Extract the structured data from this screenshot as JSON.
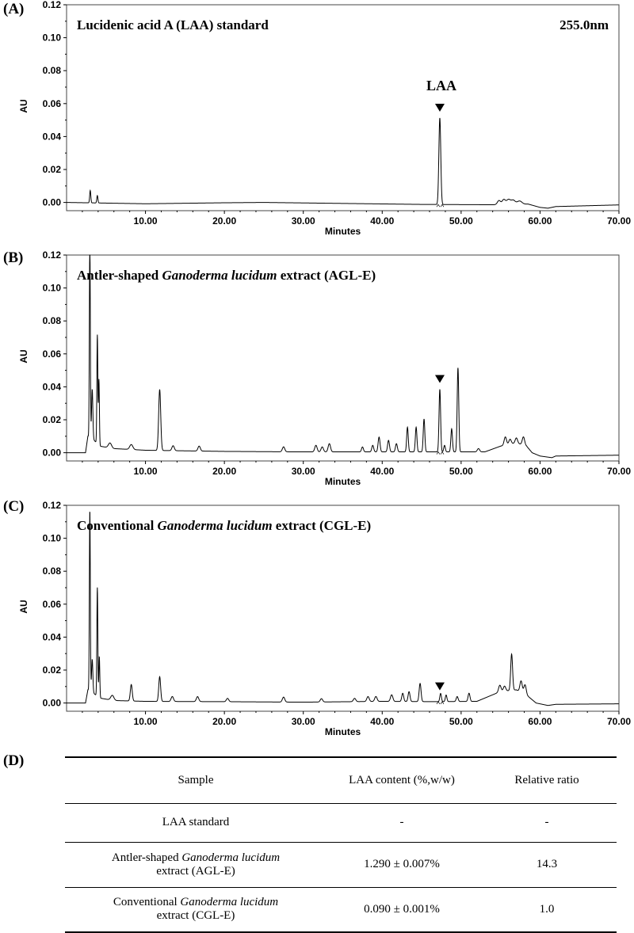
{
  "panels": [
    {
      "letter": "(A)",
      "title_parts": [
        "Lucidenic acid A (LAA) standard",
        "",
        ""
      ],
      "wavelength": "255.0nm",
      "peak_label": "LAA"
    },
    {
      "letter": "(B)",
      "title_parts": [
        "Antler-shaped ",
        "Ganoderma lucidum",
        " extract (AGL-E)"
      ],
      "wavelength": "",
      "peak_label": ""
    },
    {
      "letter": "(C)",
      "title_parts": [
        "Conventional ",
        "Ganoderma lucidum",
        " extract (CGL-E)"
      ],
      "wavelength": "",
      "peak_label": ""
    }
  ],
  "chart_data": [
    {
      "type": "line",
      "title": "Lucidenic acid A (LAA) standard",
      "xlabel": "Minutes",
      "ylabel": "AU",
      "xlim": [
        0,
        70
      ],
      "ylim": [
        -0.005,
        0.12
      ],
      "x_ticks": [
        "10.00",
        "20.00",
        "30.00",
        "40.00",
        "50.00",
        "60.00",
        "70.00"
      ],
      "y_ticks": [
        "0.00",
        "0.02",
        "0.04",
        "0.06",
        "0.08",
        "0.10",
        "0.12"
      ],
      "baseline": [
        [
          0,
          0.0
        ],
        [
          10,
          -0.0008
        ],
        [
          20,
          -0.0002
        ],
        [
          25,
          0.0
        ],
        [
          35,
          -0.0006
        ],
        [
          45,
          -0.0012
        ],
        [
          54,
          -0.0014
        ],
        [
          58.5,
          -0.001
        ],
        [
          60,
          -0.003
        ],
        [
          61,
          -0.0035
        ],
        [
          62,
          -0.0025
        ],
        [
          70,
          -0.0015
        ]
      ],
      "peaks": [
        [
          3.0,
          0.0075,
          0.07
        ],
        [
          3.9,
          0.0045,
          0.07
        ],
        [
          47.3,
          0.0525,
          0.12
        ],
        [
          54.8,
          0.0025,
          0.2
        ],
        [
          55.4,
          0.003,
          0.2
        ],
        [
          56.0,
          0.003,
          0.25
        ],
        [
          56.6,
          0.0025,
          0.25
        ],
        [
          57.4,
          0.002,
          0.3
        ]
      ],
      "markers": [
        47.3
      ]
    },
    {
      "type": "line",
      "title": "Antler-shaped Ganoderma lucidum extract (AGL-E)",
      "xlabel": "Minutes",
      "ylabel": "AU",
      "xlim": [
        0,
        70
      ],
      "ylim": [
        -0.005,
        0.12
      ],
      "x_ticks": [
        "10.00",
        "20.00",
        "30.00",
        "40.00",
        "50.00",
        "60.00",
        "70.00"
      ],
      "y_ticks": [
        "0.00",
        "0.02",
        "0.04",
        "0.06",
        "0.08",
        "0.10",
        "0.12"
      ],
      "baseline": [
        [
          0,
          0.0
        ],
        [
          2.4,
          0.0
        ],
        [
          2.7,
          0.01
        ],
        [
          3.4,
          0.008
        ],
        [
          4.2,
          0.004
        ],
        [
          6,
          0.0025
        ],
        [
          10,
          0.0015
        ],
        [
          20,
          0.0008
        ],
        [
          30,
          0.0005
        ],
        [
          40,
          0.0005
        ],
        [
          50,
          0.0005
        ],
        [
          53,
          0.0005
        ],
        [
          55,
          0.004
        ],
        [
          57,
          0.006
        ],
        [
          58.3,
          0.004
        ],
        [
          59,
          0.0
        ],
        [
          60,
          -0.002
        ],
        [
          61.5,
          -0.003
        ],
        [
          62,
          -0.002
        ],
        [
          70,
          -0.0015
        ]
      ],
      "peaks": [
        [
          2.95,
          0.12,
          0.06
        ],
        [
          3.25,
          0.03,
          0.08
        ],
        [
          3.9,
          0.066,
          0.06
        ],
        [
          4.1,
          0.04,
          0.06
        ],
        [
          5.5,
          0.003,
          0.2
        ],
        [
          8.2,
          0.003,
          0.2
        ],
        [
          11.8,
          0.037,
          0.13
        ],
        [
          13.5,
          0.003,
          0.15
        ],
        [
          16.8,
          0.003,
          0.15
        ],
        [
          27.5,
          0.003,
          0.15
        ],
        [
          31.6,
          0.004,
          0.15
        ],
        [
          32.4,
          0.003,
          0.15
        ],
        [
          33.3,
          0.005,
          0.15
        ],
        [
          37.5,
          0.003,
          0.12
        ],
        [
          38.8,
          0.004,
          0.12
        ],
        [
          39.6,
          0.009,
          0.12
        ],
        [
          40.8,
          0.007,
          0.12
        ],
        [
          41.8,
          0.005,
          0.12
        ],
        [
          43.2,
          0.015,
          0.1
        ],
        [
          44.3,
          0.015,
          0.1
        ],
        [
          45.3,
          0.02,
          0.1
        ],
        [
          47.3,
          0.038,
          0.1
        ],
        [
          47.9,
          0.004,
          0.1
        ],
        [
          48.8,
          0.014,
          0.1
        ],
        [
          49.6,
          0.051,
          0.1
        ],
        [
          52.2,
          0.002,
          0.15
        ],
        [
          55.6,
          0.005,
          0.15
        ],
        [
          56.2,
          0.003,
          0.15
        ],
        [
          57.0,
          0.003,
          0.15
        ],
        [
          57.9,
          0.005,
          0.15
        ]
      ],
      "markers": [
        47.3
      ]
    },
    {
      "type": "line",
      "title": "Conventional Ganoderma lucidum extract (CGL-E)",
      "xlabel": "Minutes",
      "ylabel": "AU",
      "xlim": [
        0,
        70
      ],
      "ylim": [
        -0.005,
        0.12
      ],
      "x_ticks": [
        "10.00",
        "20.00",
        "30.00",
        "40.00",
        "50.00",
        "60.00",
        "70.00"
      ],
      "y_ticks": [
        "0.00",
        "0.02",
        "0.04",
        "0.06",
        "0.08",
        "0.10",
        "0.12"
      ],
      "baseline": [
        [
          0,
          0.0
        ],
        [
          2.4,
          0.0
        ],
        [
          2.7,
          0.008
        ],
        [
          3.4,
          0.006
        ],
        [
          4.2,
          0.003
        ],
        [
          6,
          0.0015
        ],
        [
          10,
          0.001
        ],
        [
          20,
          0.0008
        ],
        [
          30,
          0.0005
        ],
        [
          40,
          0.001
        ],
        [
          47,
          0.0008
        ],
        [
          52,
          0.001
        ],
        [
          53,
          0.003
        ],
        [
          55,
          0.007
        ],
        [
          57,
          0.008
        ],
        [
          58.5,
          0.004
        ],
        [
          59.5,
          0.0
        ],
        [
          61,
          -0.0015
        ],
        [
          62,
          -0.0008
        ],
        [
          70,
          -0.0005
        ]
      ],
      "peaks": [
        [
          2.95,
          0.11,
          0.06
        ],
        [
          3.25,
          0.02,
          0.08
        ],
        [
          3.9,
          0.066,
          0.06
        ],
        [
          4.15,
          0.025,
          0.06
        ],
        [
          5.8,
          0.003,
          0.2
        ],
        [
          8.2,
          0.01,
          0.12
        ],
        [
          11.8,
          0.015,
          0.12
        ],
        [
          13.4,
          0.003,
          0.15
        ],
        [
          16.6,
          0.003,
          0.15
        ],
        [
          20.4,
          0.002,
          0.15
        ],
        [
          27.5,
          0.003,
          0.15
        ],
        [
          32.3,
          0.002,
          0.15
        ],
        [
          36.5,
          0.002,
          0.15
        ],
        [
          38.2,
          0.003,
          0.15
        ],
        [
          39.2,
          0.003,
          0.15
        ],
        [
          41.2,
          0.004,
          0.15
        ],
        [
          42.6,
          0.005,
          0.12
        ],
        [
          43.4,
          0.006,
          0.12
        ],
        [
          44.8,
          0.011,
          0.12
        ],
        [
          47.4,
          0.005,
          0.1
        ],
        [
          48.1,
          0.004,
          0.1
        ],
        [
          49.5,
          0.003,
          0.12
        ],
        [
          51.0,
          0.005,
          0.12
        ],
        [
          54.9,
          0.004,
          0.15
        ],
        [
          55.5,
          0.003,
          0.15
        ],
        [
          56.4,
          0.022,
          0.12
        ],
        [
          57.6,
          0.007,
          0.15
        ],
        [
          58.1,
          0.006,
          0.15
        ]
      ],
      "markers": [
        47.3
      ]
    }
  ],
  "table": {
    "letter": "(D)",
    "headers": [
      "Sample",
      "LAA content (%,w/w)",
      "Relative ratio"
    ],
    "rows": [
      {
        "sample_line1": "LAA standard",
        "sample_pre": "",
        "sample_it": "",
        "sample_line2": "",
        "content": "-",
        "ratio": "-"
      },
      {
        "sample_line1": "",
        "sample_pre": "Antler-shaped ",
        "sample_it": "Ganoderma lucidum",
        "sample_line2": "extract (AGL-E)",
        "content": "1.290 ± 0.007%",
        "ratio": "14.3"
      },
      {
        "sample_line1": "",
        "sample_pre": "Conventional ",
        "sample_it": "Ganoderma lucidum",
        "sample_line2": "extract (CGL-E)",
        "content": "0.090 ± 0.001%",
        "ratio": "1.0"
      }
    ]
  }
}
